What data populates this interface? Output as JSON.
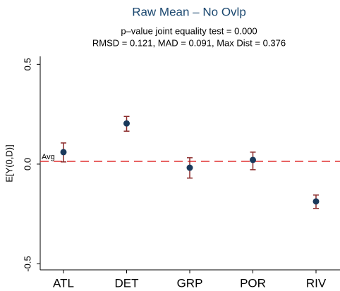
{
  "chart_data": {
    "type": "errorbar",
    "title": "Raw Mean – No Ovlp",
    "subtitle": [
      "p–value joint equality test = 0.000",
      "RMSD = 0.121, MAD = 0.091, Max Dist = 0.376"
    ],
    "y_label": "E[Y(0,D)]",
    "categories": [
      "ATL",
      "DET",
      "GRP",
      "POR",
      "RIV"
    ],
    "series": [
      {
        "values": [
          0.06,
          0.204,
          -0.018,
          0.021,
          -0.187
        ],
        "lower": [
          0.011,
          0.165,
          -0.07,
          -0.028,
          -0.222
        ],
        "upper": [
          0.106,
          0.239,
          0.032,
          0.06,
          -0.155
        ],
        "color": "#1a3a5c",
        "ci_color": "#8b2a2a"
      }
    ],
    "reference_line": {
      "label": "Avg",
      "value": 0.014,
      "color": "#e03030"
    },
    "ylim": [
      -0.53,
      0.54
    ],
    "yticks": [
      -0.5,
      {
        "value": 0,
        "label": "0.0"
      },
      0.5
    ]
  }
}
